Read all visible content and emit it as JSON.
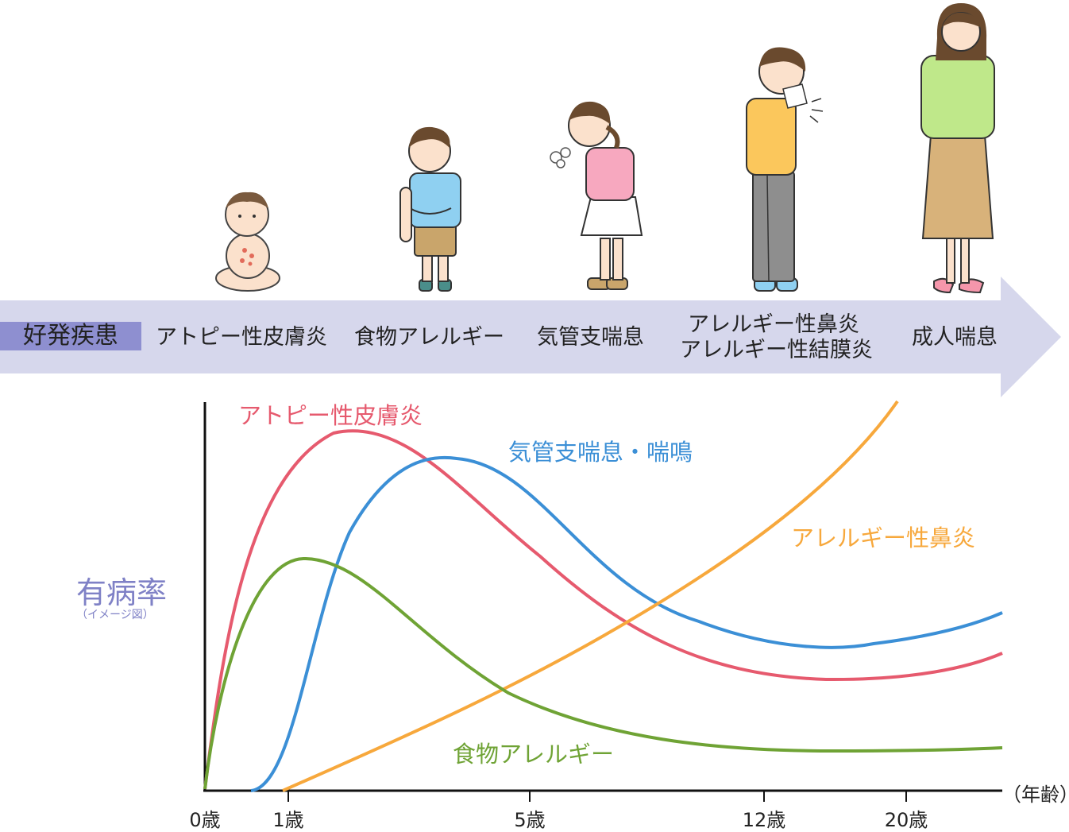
{
  "band": {
    "label": "好発疾患",
    "stages": [
      {
        "lines": [
          "アトピー性皮膚炎"
        ]
      },
      {
        "lines": [
          "食物アレルギー"
        ]
      },
      {
        "lines": [
          "気管支喘息"
        ]
      },
      {
        "lines": [
          "アレルギー性鼻炎",
          "アレルギー性結膜炎"
        ]
      },
      {
        "lines": [
          "成人喘息"
        ]
      }
    ]
  },
  "figures": [
    {
      "icon": "baby-with-rash-icon"
    },
    {
      "icon": "boy-scratching-arm-icon"
    },
    {
      "icon": "girl-coughing-icon"
    },
    {
      "icon": "boy-sneezing-icon"
    },
    {
      "icon": "woman-coughing-icon"
    }
  ],
  "chart": {
    "ylabel": "有病率",
    "ylabel_note": "（イメージ図）",
    "xunit": "（年齢）",
    "ticks": [
      "0歳",
      "1歳",
      "5歳",
      "12歳",
      "20歳"
    ],
    "curves": [
      {
        "name": "アトピー性皮膚炎",
        "color": "#e65a6e"
      },
      {
        "name": "気管支喘息・喘鳴",
        "color": "#3b8fd6"
      },
      {
        "name": "アレルギー性鼻炎",
        "color": "#f7a83c"
      },
      {
        "name": "食物アレルギー",
        "color": "#6fa335"
      }
    ]
  },
  "colors": {
    "band_arrow": "#d6d7ec",
    "band_label_bg": "#8e8fd0",
    "ylabel": "#7f81c6",
    "axis": "#111111"
  }
}
